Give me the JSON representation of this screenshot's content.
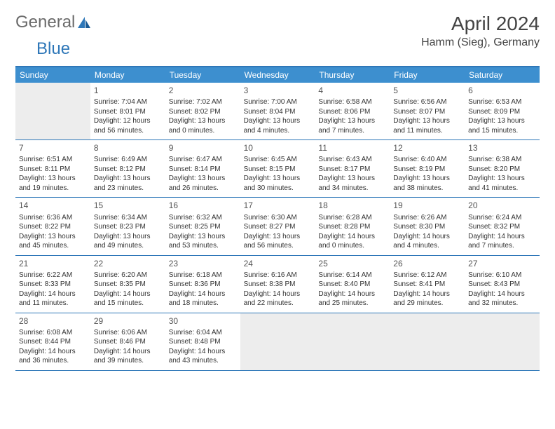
{
  "logo": {
    "textGray": "General",
    "textBlue": "Blue"
  },
  "title": "April 2024",
  "location": "Hamm (Sieg), Germany",
  "dayNames": [
    "Sunday",
    "Monday",
    "Tuesday",
    "Wednesday",
    "Thursday",
    "Friday",
    "Saturday"
  ],
  "colors": {
    "headerBar": "#3d8fcf",
    "borderTop": "#2e77b8",
    "emptyCell": "#ededed",
    "text": "#333333"
  },
  "weeks": [
    [
      {
        "empty": true
      },
      {
        "n": "1",
        "sr": "Sunrise: 7:04 AM",
        "ss": "Sunset: 8:01 PM",
        "d1": "Daylight: 12 hours",
        "d2": "and 56 minutes."
      },
      {
        "n": "2",
        "sr": "Sunrise: 7:02 AM",
        "ss": "Sunset: 8:02 PM",
        "d1": "Daylight: 13 hours",
        "d2": "and 0 minutes."
      },
      {
        "n": "3",
        "sr": "Sunrise: 7:00 AM",
        "ss": "Sunset: 8:04 PM",
        "d1": "Daylight: 13 hours",
        "d2": "and 4 minutes."
      },
      {
        "n": "4",
        "sr": "Sunrise: 6:58 AM",
        "ss": "Sunset: 8:06 PM",
        "d1": "Daylight: 13 hours",
        "d2": "and 7 minutes."
      },
      {
        "n": "5",
        "sr": "Sunrise: 6:56 AM",
        "ss": "Sunset: 8:07 PM",
        "d1": "Daylight: 13 hours",
        "d2": "and 11 minutes."
      },
      {
        "n": "6",
        "sr": "Sunrise: 6:53 AM",
        "ss": "Sunset: 8:09 PM",
        "d1": "Daylight: 13 hours",
        "d2": "and 15 minutes."
      }
    ],
    [
      {
        "n": "7",
        "sr": "Sunrise: 6:51 AM",
        "ss": "Sunset: 8:11 PM",
        "d1": "Daylight: 13 hours",
        "d2": "and 19 minutes."
      },
      {
        "n": "8",
        "sr": "Sunrise: 6:49 AM",
        "ss": "Sunset: 8:12 PM",
        "d1": "Daylight: 13 hours",
        "d2": "and 23 minutes."
      },
      {
        "n": "9",
        "sr": "Sunrise: 6:47 AM",
        "ss": "Sunset: 8:14 PM",
        "d1": "Daylight: 13 hours",
        "d2": "and 26 minutes."
      },
      {
        "n": "10",
        "sr": "Sunrise: 6:45 AM",
        "ss": "Sunset: 8:15 PM",
        "d1": "Daylight: 13 hours",
        "d2": "and 30 minutes."
      },
      {
        "n": "11",
        "sr": "Sunrise: 6:43 AM",
        "ss": "Sunset: 8:17 PM",
        "d1": "Daylight: 13 hours",
        "d2": "and 34 minutes."
      },
      {
        "n": "12",
        "sr": "Sunrise: 6:40 AM",
        "ss": "Sunset: 8:19 PM",
        "d1": "Daylight: 13 hours",
        "d2": "and 38 minutes."
      },
      {
        "n": "13",
        "sr": "Sunrise: 6:38 AM",
        "ss": "Sunset: 8:20 PM",
        "d1": "Daylight: 13 hours",
        "d2": "and 41 minutes."
      }
    ],
    [
      {
        "n": "14",
        "sr": "Sunrise: 6:36 AM",
        "ss": "Sunset: 8:22 PM",
        "d1": "Daylight: 13 hours",
        "d2": "and 45 minutes."
      },
      {
        "n": "15",
        "sr": "Sunrise: 6:34 AM",
        "ss": "Sunset: 8:23 PM",
        "d1": "Daylight: 13 hours",
        "d2": "and 49 minutes."
      },
      {
        "n": "16",
        "sr": "Sunrise: 6:32 AM",
        "ss": "Sunset: 8:25 PM",
        "d1": "Daylight: 13 hours",
        "d2": "and 53 minutes."
      },
      {
        "n": "17",
        "sr": "Sunrise: 6:30 AM",
        "ss": "Sunset: 8:27 PM",
        "d1": "Daylight: 13 hours",
        "d2": "and 56 minutes."
      },
      {
        "n": "18",
        "sr": "Sunrise: 6:28 AM",
        "ss": "Sunset: 8:28 PM",
        "d1": "Daylight: 14 hours",
        "d2": "and 0 minutes."
      },
      {
        "n": "19",
        "sr": "Sunrise: 6:26 AM",
        "ss": "Sunset: 8:30 PM",
        "d1": "Daylight: 14 hours",
        "d2": "and 4 minutes."
      },
      {
        "n": "20",
        "sr": "Sunrise: 6:24 AM",
        "ss": "Sunset: 8:32 PM",
        "d1": "Daylight: 14 hours",
        "d2": "and 7 minutes."
      }
    ],
    [
      {
        "n": "21",
        "sr": "Sunrise: 6:22 AM",
        "ss": "Sunset: 8:33 PM",
        "d1": "Daylight: 14 hours",
        "d2": "and 11 minutes."
      },
      {
        "n": "22",
        "sr": "Sunrise: 6:20 AM",
        "ss": "Sunset: 8:35 PM",
        "d1": "Daylight: 14 hours",
        "d2": "and 15 minutes."
      },
      {
        "n": "23",
        "sr": "Sunrise: 6:18 AM",
        "ss": "Sunset: 8:36 PM",
        "d1": "Daylight: 14 hours",
        "d2": "and 18 minutes."
      },
      {
        "n": "24",
        "sr": "Sunrise: 6:16 AM",
        "ss": "Sunset: 8:38 PM",
        "d1": "Daylight: 14 hours",
        "d2": "and 22 minutes."
      },
      {
        "n": "25",
        "sr": "Sunrise: 6:14 AM",
        "ss": "Sunset: 8:40 PM",
        "d1": "Daylight: 14 hours",
        "d2": "and 25 minutes."
      },
      {
        "n": "26",
        "sr": "Sunrise: 6:12 AM",
        "ss": "Sunset: 8:41 PM",
        "d1": "Daylight: 14 hours",
        "d2": "and 29 minutes."
      },
      {
        "n": "27",
        "sr": "Sunrise: 6:10 AM",
        "ss": "Sunset: 8:43 PM",
        "d1": "Daylight: 14 hours",
        "d2": "and 32 minutes."
      }
    ],
    [
      {
        "n": "28",
        "sr": "Sunrise: 6:08 AM",
        "ss": "Sunset: 8:44 PM",
        "d1": "Daylight: 14 hours",
        "d2": "and 36 minutes."
      },
      {
        "n": "29",
        "sr": "Sunrise: 6:06 AM",
        "ss": "Sunset: 8:46 PM",
        "d1": "Daylight: 14 hours",
        "d2": "and 39 minutes."
      },
      {
        "n": "30",
        "sr": "Sunrise: 6:04 AM",
        "ss": "Sunset: 8:48 PM",
        "d1": "Daylight: 14 hours",
        "d2": "and 43 minutes."
      },
      {
        "trailing": true
      },
      {
        "trailing": true
      },
      {
        "trailing": true
      },
      {
        "trailing": true
      }
    ]
  ]
}
